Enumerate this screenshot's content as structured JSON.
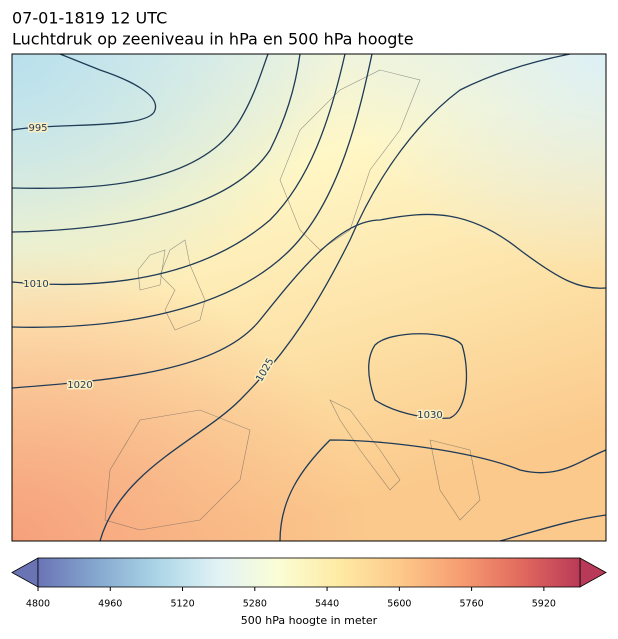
{
  "title": "07-01-1819 12 UTC",
  "subtitle": "Luchtdruk op zeeniveau in hPa en 500 hPa hoogte",
  "map": {
    "isobar_labels": [
      995,
      1010,
      1020,
      1025,
      1030
    ]
  },
  "colorbar": {
    "label": "500 hPa hoogte in meter",
    "lim": [
      4800,
      6000
    ],
    "ticks": [
      4800,
      4960,
      5120,
      5280,
      5440,
      5600,
      5760,
      5920
    ],
    "colors": [
      "#6a74b5",
      "#86a9d0",
      "#acd6e7",
      "#e2f3f6",
      "#fbfdd4",
      "#feeaa4",
      "#fdc98a",
      "#f79e72",
      "#e26b5e",
      "#b93a58"
    ]
  }
}
